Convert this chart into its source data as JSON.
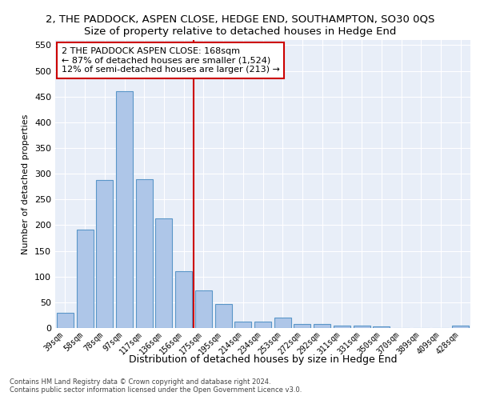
{
  "title": "2, THE PADDOCK, ASPEN CLOSE, HEDGE END, SOUTHAMPTON, SO30 0QS",
  "subtitle": "Size of property relative to detached houses in Hedge End",
  "xlabel": "Distribution of detached houses by size in Hedge End",
  "ylabel": "Number of detached properties",
  "categories": [
    "39sqm",
    "58sqm",
    "78sqm",
    "97sqm",
    "117sqm",
    "136sqm",
    "156sqm",
    "175sqm",
    "195sqm",
    "214sqm",
    "234sqm",
    "253sqm",
    "272sqm",
    "292sqm",
    "311sqm",
    "331sqm",
    "350sqm",
    "370sqm",
    "389sqm",
    "409sqm",
    "428sqm"
  ],
  "values": [
    30,
    192,
    288,
    460,
    290,
    213,
    110,
    73,
    47,
    12,
    12,
    20,
    8,
    8,
    5,
    4,
    3,
    0,
    0,
    0,
    5
  ],
  "bar_color": "#aec6e8",
  "bar_edge_color": "#5a96c8",
  "vline_x": 6.5,
  "property_line_label": "2 THE PADDOCK ASPEN CLOSE: 168sqm",
  "annotation_line1": "← 87% of detached houses are smaller (1,524)",
  "annotation_line2": "12% of semi-detached houses are larger (213) →",
  "vline_color": "#cc0000",
  "annotation_box_color": "#cc0000",
  "bg_color": "#e8eef8",
  "footer1": "Contains HM Land Registry data © Crown copyright and database right 2024.",
  "footer2": "Contains public sector information licensed under the Open Government Licence v3.0.",
  "ylim": [
    0,
    560
  ],
  "yticks": [
    0,
    50,
    100,
    150,
    200,
    250,
    300,
    350,
    400,
    450,
    500,
    550
  ],
  "title_fontsize": 9.5,
  "subtitle_fontsize": 9.5,
  "ylabel_fontsize": 8,
  "xlabel_fontsize": 9,
  "annotation_fontsize": 8,
  "footer_fontsize": 6
}
